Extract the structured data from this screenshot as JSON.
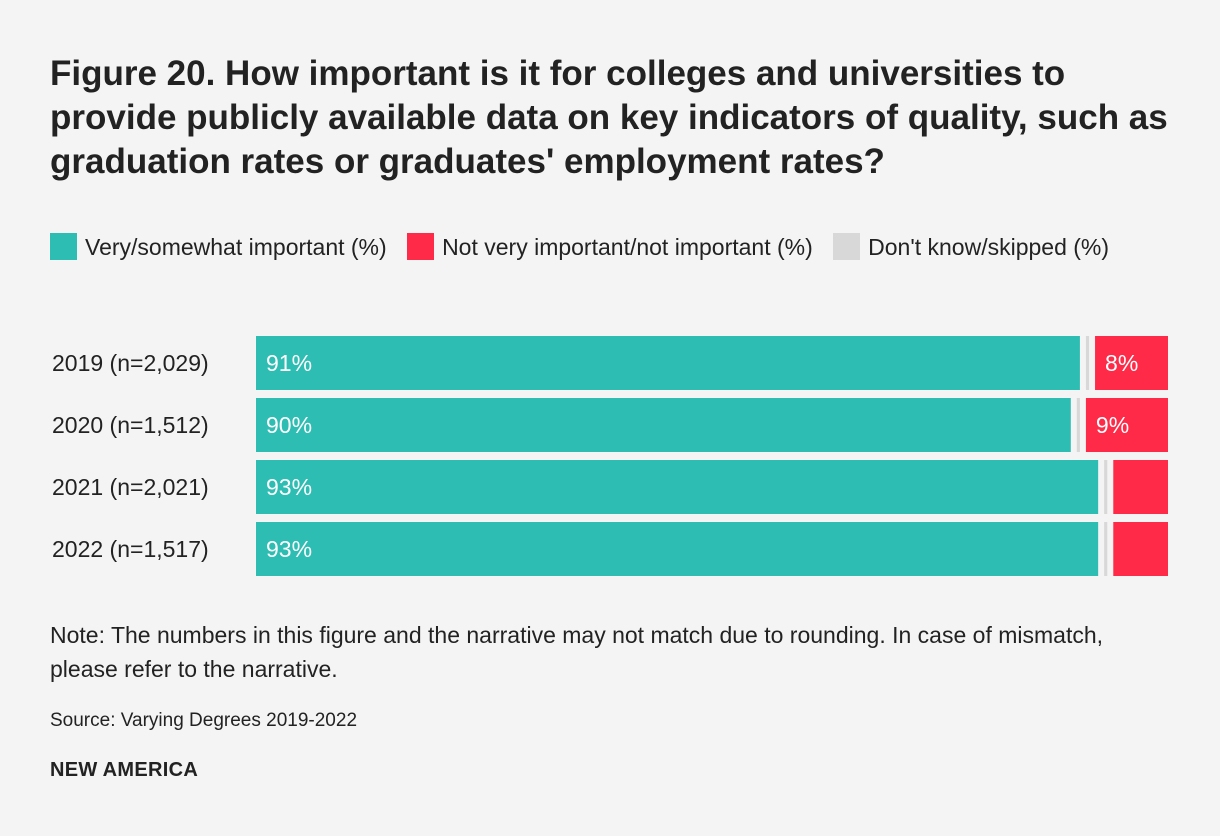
{
  "title": "Figure 20. How important is it for colleges and universities to provide publicly available data on key indicators of quality, such as graduation rates or graduates' employment rates?",
  "legend": [
    {
      "label": "Very/somewhat important (%)",
      "color": "#2ebdb3"
    },
    {
      "label": "Not very important/not important (%)",
      "color": "#ff2a48"
    },
    {
      "label": "Don't know/skipped (%)",
      "color": "#d8d8d8"
    }
  ],
  "chart_data": {
    "type": "bar",
    "orientation": "horizontal",
    "stacked": true,
    "categories": [
      "2019 (n=2,029)",
      "2020 (n=1,512)",
      "2021 (n=2,021)",
      "2022 (n=1,517)"
    ],
    "series": [
      {
        "name": "Very/somewhat important (%)",
        "color": "#2ebdb3",
        "values": [
          91,
          90,
          93,
          93
        ],
        "labels": [
          "91%",
          "90%",
          "93%",
          "93%"
        ]
      },
      {
        "name": "Don't know/skipped (%)",
        "color": "#d8d8d8",
        "values": [
          1,
          1,
          1,
          1
        ],
        "labels": [
          "",
          "",
          "",
          ""
        ]
      },
      {
        "name": "Not very important/not important (%)",
        "color": "#ff2a48",
        "values": [
          8,
          9,
          6,
          6
        ],
        "labels": [
          "8%",
          "9%",
          "",
          ""
        ]
      }
    ],
    "xlim": [
      0,
      100
    ],
    "grid": false,
    "legend_position": "top"
  },
  "note": "Note: The numbers in this figure and the narrative may not match due to rounding. In case of mismatch, please refer to the narrative.",
  "source": "Source: Varying Degrees 2019-2022",
  "brand": "NEW AMERICA"
}
